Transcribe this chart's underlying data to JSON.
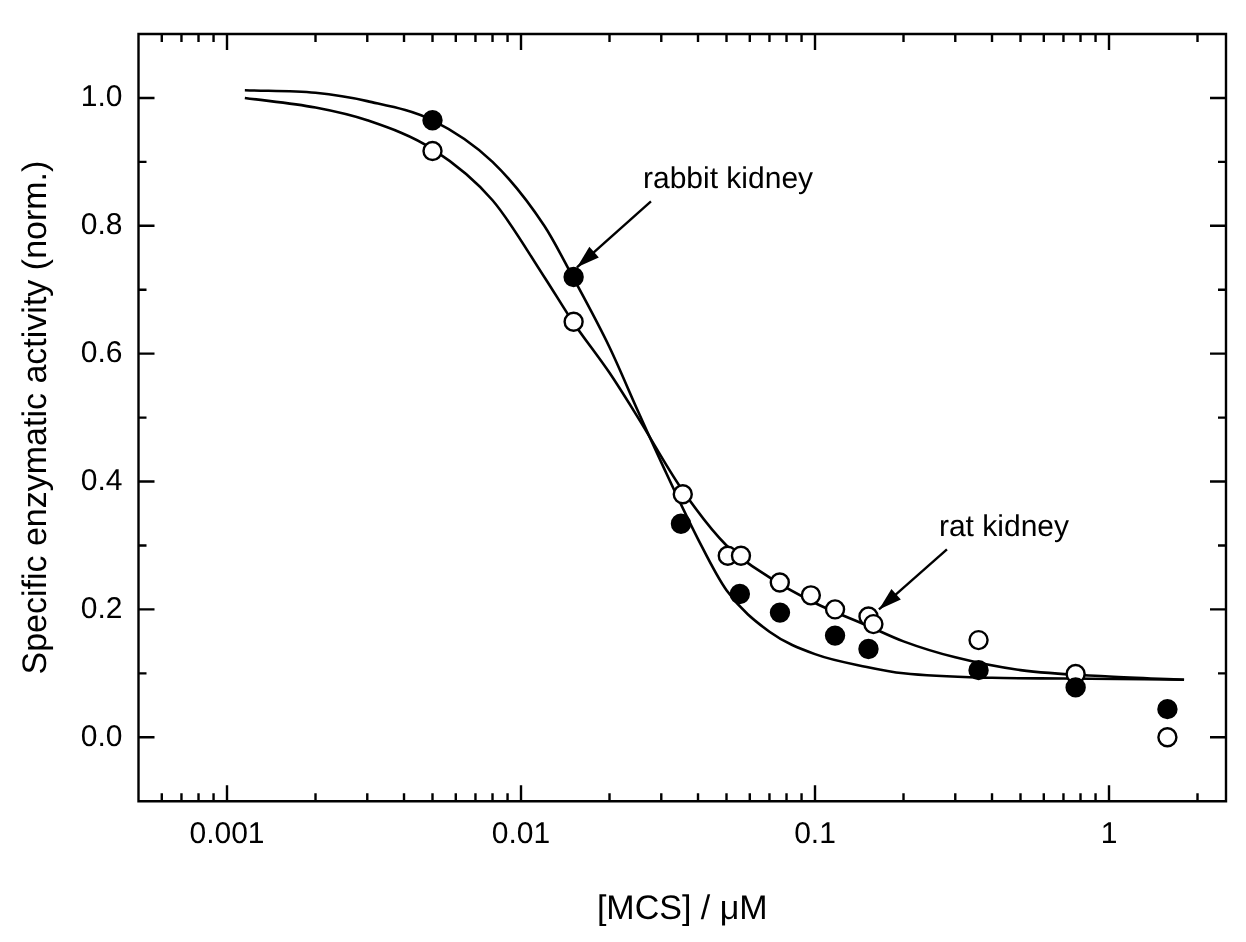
{
  "chart_data": {
    "type": "scatter",
    "xlabel": "[MCS] / μM",
    "ylabel": "Specific enzymatic activity (norm.)",
    "log": "x",
    "grid": false,
    "legend": false,
    "xlim": [
      0.0005,
      2.5
    ],
    "ylim": [
      -0.1,
      1.1
    ],
    "xticks": [
      {
        "value": 0.0006,
        "label": null
      },
      {
        "value": 0.0007,
        "label": null
      },
      {
        "value": 0.0008,
        "label": null
      },
      {
        "value": 0.0009,
        "label": null
      },
      {
        "value": 0.001,
        "label": "0.001"
      },
      {
        "value": 0.002,
        "label": null
      },
      {
        "value": 0.003,
        "label": null
      },
      {
        "value": 0.004,
        "label": null
      },
      {
        "value": 0.005,
        "label": null
      },
      {
        "value": 0.006,
        "label": null
      },
      {
        "value": 0.007,
        "label": null
      },
      {
        "value": 0.008,
        "label": null
      },
      {
        "value": 0.009,
        "label": null
      },
      {
        "value": 0.01,
        "label": "0.01"
      },
      {
        "value": 0.02,
        "label": null
      },
      {
        "value": 0.03,
        "label": null
      },
      {
        "value": 0.04,
        "label": null
      },
      {
        "value": 0.05,
        "label": null
      },
      {
        "value": 0.06,
        "label": null
      },
      {
        "value": 0.07,
        "label": null
      },
      {
        "value": 0.08,
        "label": null
      },
      {
        "value": 0.09,
        "label": null
      },
      {
        "value": 0.1,
        "label": "0.1"
      },
      {
        "value": 0.2,
        "label": null
      },
      {
        "value": 0.3,
        "label": null
      },
      {
        "value": 0.4,
        "label": null
      },
      {
        "value": 0.5,
        "label": null
      },
      {
        "value": 0.6,
        "label": null
      },
      {
        "value": 0.7,
        "label": null
      },
      {
        "value": 0.8,
        "label": null
      },
      {
        "value": 0.9,
        "label": null
      },
      {
        "value": 1,
        "label": "1"
      },
      {
        "value": 2,
        "label": null
      }
    ],
    "yticks": [
      {
        "value": 0,
        "label": "0.0"
      },
      {
        "value": 0.1,
        "label": null
      },
      {
        "value": 0.2,
        "label": "0.2"
      },
      {
        "value": 0.3,
        "label": null
      },
      {
        "value": 0.4,
        "label": "0.4"
      },
      {
        "value": 0.5,
        "label": null
      },
      {
        "value": 0.6,
        "label": "0.6"
      },
      {
        "value": 0.7,
        "label": null
      },
      {
        "value": 0.8,
        "label": "0.8"
      },
      {
        "value": 0.9,
        "label": null
      },
      {
        "value": 1,
        "label": "1.0"
      }
    ],
    "series": [
      {
        "marker": "circle",
        "color": "#000000",
        "x": [
          0.005,
          0.0151,
          0.035,
          0.0555,
          0.076,
          0.117,
          0.152,
          0.36,
          0.77,
          1.58
        ],
        "values": [
          0.965,
          0.72,
          0.334,
          0.224,
          0.195,
          0.159,
          0.138,
          0.105,
          0.078,
          0.044
        ]
      },
      {
        "marker": "circle",
        "color": "#000000",
        "x": [
          0.005,
          0.0151,
          0.0355,
          0.0505,
          0.056,
          0.0759,
          0.0968,
          0.117,
          0.152,
          0.158,
          0.36,
          0.77,
          1.58
        ],
        "values": [
          0.917,
          0.65,
          0.38,
          0.284,
          0.284,
          0.242,
          0.222,
          0.2,
          0.189,
          0.177,
          0.152,
          0.099,
          0.0
        ]
      },
      {
        "type": "line",
        "marker": "none",
        "color": "#000000",
        "x": [
          0.00115,
          0.002,
          0.003,
          0.005,
          0.008,
          0.012,
          0.015,
          0.02,
          0.025,
          0.03,
          0.04,
          0.05,
          0.07,
          0.1,
          0.15,
          0.2,
          0.4,
          0.7,
          1.8
        ],
        "values": [
          1.012,
          1.008,
          0.995,
          0.965,
          0.9,
          0.8,
          0.72,
          0.61,
          0.51,
          0.43,
          0.31,
          0.23,
          0.165,
          0.13,
          0.11,
          0.1,
          0.093,
          0.092,
          0.09
        ]
      },
      {
        "type": "line",
        "marker": "none",
        "color": "#000000",
        "x": [
          0.00115,
          0.002,
          0.003,
          0.005,
          0.008,
          0.012,
          0.015,
          0.02,
          0.025,
          0.035,
          0.05,
          0.07,
          0.1,
          0.15,
          0.2,
          0.3,
          0.5,
          1,
          1.8
        ],
        "values": [
          1.0,
          0.985,
          0.965,
          0.92,
          0.84,
          0.72,
          0.65,
          0.57,
          0.5,
          0.39,
          0.3,
          0.25,
          0.21,
          0.175,
          0.15,
          0.125,
          0.105,
          0.095,
          0.09
        ]
      }
    ],
    "annotations": [
      {
        "text": "rabbit kidney",
        "x": 0.0155,
        "y": 0.735
      },
      {
        "text": "rat kidney",
        "x": 0.165,
        "y": 0.2
      }
    ]
  }
}
